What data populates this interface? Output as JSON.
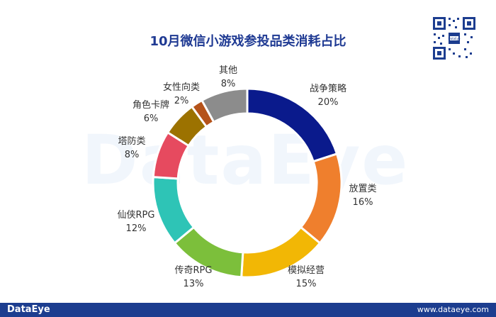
{
  "title": "10月微信小游戏参投品类消耗占比",
  "watermark": "DataEye",
  "footer": {
    "brand": "DataEye",
    "url": "www.dataeye.com"
  },
  "qr_label": "DataEye",
  "colors": {
    "title": "#1f3a93",
    "footer_bg": "#1c3d8f"
  },
  "chart_data": {
    "type": "pie",
    "donut": true,
    "title": "10月微信小游戏参投品类消耗占比",
    "slices": [
      {
        "label": "战争策略",
        "value": 20,
        "text": "20%",
        "color": "#0a1a8c"
      },
      {
        "label": "放置类",
        "value": 16,
        "text": "16%",
        "color": "#ef7f2d"
      },
      {
        "label": "模拟经营",
        "value": 15,
        "text": "15%",
        "color": "#f2b705"
      },
      {
        "label": "传奇RPG",
        "value": 13,
        "text": "13%",
        "color": "#7cbf3b"
      },
      {
        "label": "仙侠RPG",
        "value": 12,
        "text": "12%",
        "color": "#2ec4b6"
      },
      {
        "label": "塔防类",
        "value": 8,
        "text": "8%",
        "color": "#e64a5f"
      },
      {
        "label": "角色卡牌",
        "value": 6,
        "text": "6%",
        "color": "#9c7200"
      },
      {
        "label": "女性向类",
        "value": 2,
        "text": "2%",
        "color": "#b5531a"
      },
      {
        "label": "其他",
        "value": 8,
        "text": "8%",
        "color": "#8c8c8c"
      }
    ]
  }
}
